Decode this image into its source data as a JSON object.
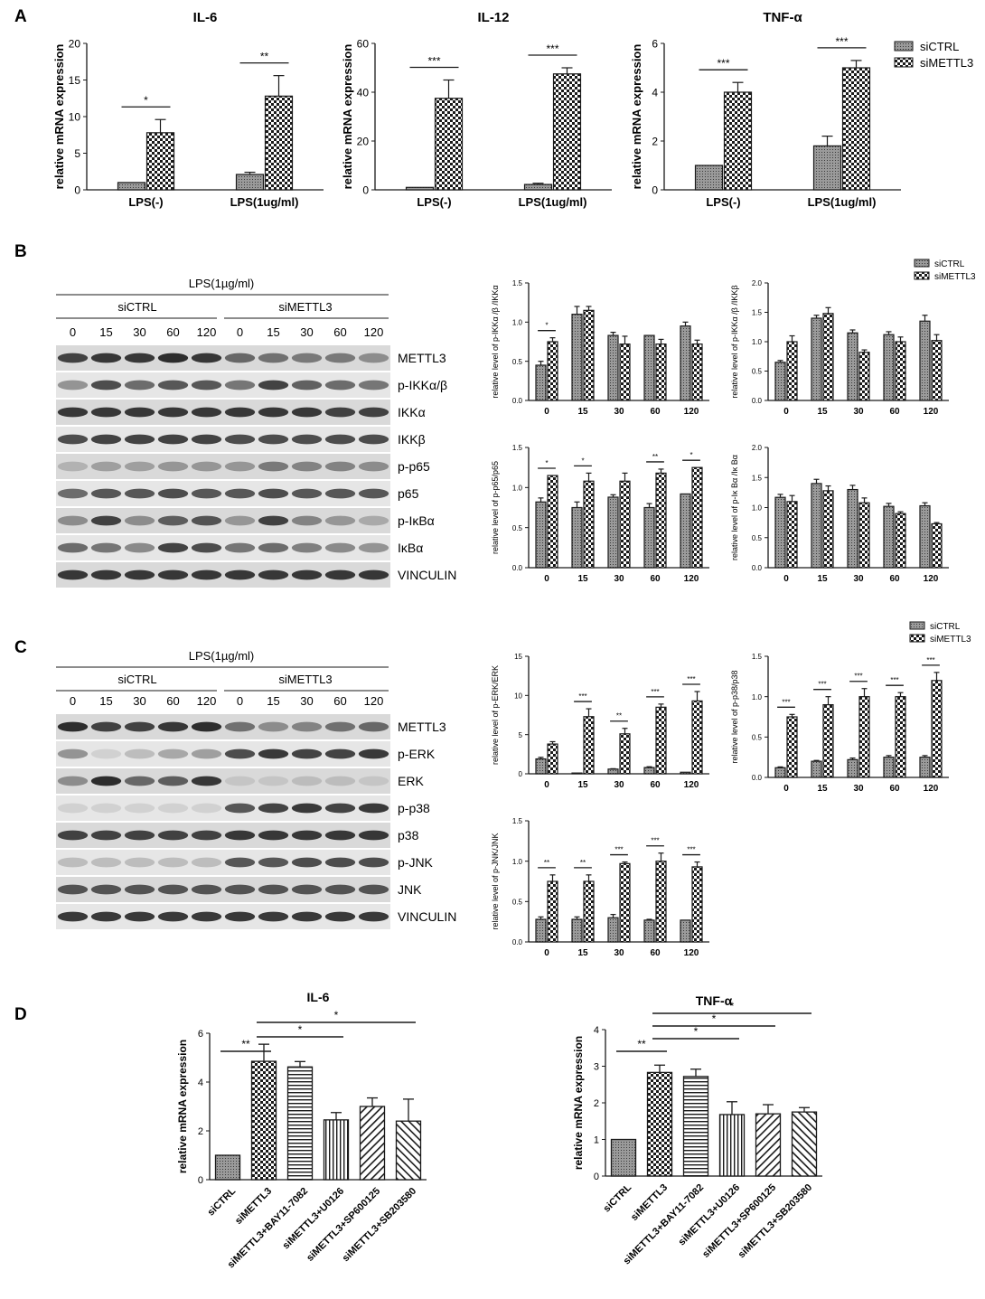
{
  "figure": {
    "panel_labels": [
      "A",
      "B",
      "C",
      "D"
    ],
    "legend_siCTRL": "siCTRL",
    "legend_siMETTL3": "siMETTL3",
    "colors": {
      "ink": "#1a1a1a",
      "fill_siCTRL": "#8c8c8c",
      "check_dark": "#1a1a1a",
      "check_light": "#ffffff"
    }
  },
  "panel_b": {
    "treatment": "LPS(1µg/ml)",
    "group1": "siCTRL",
    "group2": "siMETTL3",
    "timepoints": [
      "0",
      "15",
      "30",
      "60",
      "120",
      "0",
      "15",
      "30",
      "60",
      "120"
    ],
    "bands": [
      "METTL3",
      "p-IKKα/β",
      "IKKα",
      "IKKβ",
      "p-p65",
      "p65",
      "p-IκBα",
      "IκBα",
      "VINCULIN"
    ]
  },
  "panel_c": {
    "treatment": "LPS(1µg/ml)",
    "group1": "siCTRL",
    "group2": "siMETTL3",
    "timepoints": [
      "0",
      "15",
      "30",
      "60",
      "120",
      "0",
      "15",
      "30",
      "60",
      "120"
    ],
    "bands": [
      "METTL3",
      "p-ERK",
      "ERK",
      "p-p38",
      "p38",
      "p-JNK",
      "JNK",
      "VINCULIN"
    ]
  },
  "chart_data": [
    {
      "id": "A1",
      "type": "bar",
      "title": "IL-6",
      "ylabel": "relative mRNA expression",
      "categories": [
        "LPS(-)",
        "LPS(1ug/ml)"
      ],
      "ylim": [
        0,
        20
      ],
      "yticks": [
        0,
        5,
        10,
        15,
        20
      ],
      "series": [
        {
          "name": "siCTRL",
          "values": [
            1.0,
            2.1
          ],
          "errors": [
            0,
            0.3
          ]
        },
        {
          "name": "siMETTL3",
          "values": [
            7.8,
            12.8
          ],
          "errors": [
            1.8,
            2.8
          ]
        }
      ],
      "sig": [
        {
          "cat": 0,
          "label": "*"
        },
        {
          "cat": 1,
          "label": "**"
        }
      ]
    },
    {
      "id": "A2",
      "type": "bar",
      "title": "IL-12",
      "ylabel": "relative mRNA expression",
      "categories": [
        "LPS(-)",
        "LPS(1ug/ml)"
      ],
      "ylim": [
        0,
        60
      ],
      "yticks": [
        0,
        20,
        40,
        60
      ],
      "series": [
        {
          "name": "siCTRL",
          "values": [
            1.0,
            2.2
          ],
          "errors": [
            0,
            0.5
          ]
        },
        {
          "name": "siMETTL3",
          "values": [
            37.5,
            47.5
          ],
          "errors": [
            7.5,
            2.5
          ]
        }
      ],
      "sig": [
        {
          "cat": 0,
          "label": "***"
        },
        {
          "cat": 1,
          "label": "***"
        }
      ]
    },
    {
      "id": "A3",
      "type": "bar",
      "title": "TNF-α",
      "ylabel": "relative mRNA expression",
      "categories": [
        "LPS(-)",
        "LPS(1ug/ml)"
      ],
      "ylim": [
        0,
        6
      ],
      "yticks": [
        0,
        2,
        4,
        6
      ],
      "series": [
        {
          "name": "siCTRL",
          "values": [
            1.0,
            1.8
          ],
          "errors": [
            0,
            0.4
          ]
        },
        {
          "name": "siMETTL3",
          "values": [
            4.0,
            5.0
          ],
          "errors": [
            0.4,
            0.3
          ]
        }
      ],
      "sig": [
        {
          "cat": 0,
          "label": "***"
        },
        {
          "cat": 1,
          "label": "***"
        }
      ]
    },
    {
      "id": "B1",
      "type": "bar",
      "title": "",
      "ylabel": "relative level of p-IKKα /β /IKKα",
      "categories": [
        "0",
        "15",
        "30",
        "60",
        "120"
      ],
      "ylim": [
        0,
        1.5
      ],
      "yticks": [
        0.0,
        0.5,
        1.0,
        1.5
      ],
      "series": [
        {
          "name": "siCTRL",
          "values": [
            0.45,
            1.1,
            0.83,
            0.83,
            0.95
          ],
          "errors": [
            0.05,
            0.1,
            0.04,
            0,
            0.05
          ]
        },
        {
          "name": "siMETTL3",
          "values": [
            0.75,
            1.15,
            0.72,
            0.72,
            0.72
          ],
          "errors": [
            0.05,
            0.05,
            0.1,
            0.06,
            0.05
          ]
        }
      ],
      "sig": [
        {
          "cat": 0,
          "label": "*"
        }
      ]
    },
    {
      "id": "B2",
      "type": "bar",
      "title": "",
      "ylabel": "relative level of p-IKKα /β /IKKβ",
      "categories": [
        "0",
        "15",
        "30",
        "60",
        "120"
      ],
      "ylim": [
        0,
        2.0
      ],
      "yticks": [
        0.0,
        0.5,
        1.0,
        1.5,
        2.0
      ],
      "series": [
        {
          "name": "siCTRL",
          "values": [
            0.65,
            1.4,
            1.15,
            1.12,
            1.35
          ],
          "errors": [
            0.03,
            0.05,
            0.05,
            0.05,
            0.1
          ]
        },
        {
          "name": "siMETTL3",
          "values": [
            1.0,
            1.48,
            0.82,
            1.0,
            1.02
          ],
          "errors": [
            0.1,
            0.1,
            0.04,
            0.08,
            0.1
          ]
        }
      ],
      "sig": []
    },
    {
      "id": "B3",
      "type": "bar",
      "title": "",
      "ylabel": "relative level of p-p65/p65",
      "categories": [
        "0",
        "15",
        "30",
        "60",
        "120"
      ],
      "ylim": [
        0,
        1.5
      ],
      "yticks": [
        0.0,
        0.5,
        1.0,
        1.5
      ],
      "series": [
        {
          "name": "siCTRL",
          "values": [
            0.82,
            0.75,
            0.88,
            0.75,
            0.92
          ],
          "errors": [
            0.05,
            0.07,
            0.03,
            0.05,
            0
          ]
        },
        {
          "name": "siMETTL3",
          "values": [
            1.15,
            1.08,
            1.08,
            1.18,
            1.25
          ],
          "errors": [
            0,
            0.1,
            0.1,
            0.05,
            0
          ]
        }
      ],
      "sig": [
        {
          "cat": 0,
          "label": "*"
        },
        {
          "cat": 1,
          "label": "*"
        },
        {
          "cat": 3,
          "label": "**"
        },
        {
          "cat": 4,
          "label": "*"
        }
      ]
    },
    {
      "id": "B4",
      "type": "bar",
      "title": "",
      "ylabel": "relative level of p-Iκ Bα /Iκ Bα",
      "categories": [
        "0",
        "15",
        "30",
        "60",
        "120"
      ],
      "ylim": [
        0,
        2.0
      ],
      "yticks": [
        0.0,
        0.5,
        1.0,
        1.5,
        2.0
      ],
      "series": [
        {
          "name": "siCTRL",
          "values": [
            1.17,
            1.4,
            1.3,
            1.02,
            1.03
          ],
          "errors": [
            0.05,
            0.07,
            0.07,
            0.05,
            0.05
          ]
        },
        {
          "name": "siMETTL3",
          "values": [
            1.1,
            1.28,
            1.08,
            0.9,
            0.73
          ],
          "errors": [
            0.1,
            0.08,
            0.08,
            0.03,
            0.02
          ]
        }
      ],
      "sig": []
    },
    {
      "id": "C1",
      "type": "bar",
      "title": "",
      "ylabel": "relative level of p-ERK/ERK",
      "categories": [
        "0",
        "15",
        "30",
        "60",
        "120"
      ],
      "ylim": [
        0,
        15
      ],
      "yticks": [
        0,
        5,
        10,
        15
      ],
      "series": [
        {
          "name": "siCTRL",
          "values": [
            1.9,
            0.1,
            0.6,
            0.8,
            0.2
          ],
          "errors": [
            0.2,
            0,
            0.05,
            0.1,
            0
          ]
        },
        {
          "name": "siMETTL3",
          "values": [
            3.8,
            7.3,
            5.1,
            8.5,
            9.3
          ],
          "errors": [
            0.3,
            1.0,
            0.7,
            0.4,
            1.2
          ]
        }
      ],
      "sig": [
        {
          "cat": 1,
          "label": "***"
        },
        {
          "cat": 2,
          "label": "**"
        },
        {
          "cat": 3,
          "label": "***"
        },
        {
          "cat": 4,
          "label": "***"
        }
      ]
    },
    {
      "id": "C2",
      "type": "bar",
      "title": "",
      "ylabel": "relative level of p-p38/p38",
      "categories": [
        "0",
        "15",
        "30",
        "60",
        "120"
      ],
      "ylim": [
        0,
        1.5
      ],
      "yticks": [
        0.0,
        0.5,
        1.0,
        1.5
      ],
      "series": [
        {
          "name": "siCTRL",
          "values": [
            0.12,
            0.2,
            0.22,
            0.25,
            0.25
          ],
          "errors": [
            0.01,
            0.01,
            0.02,
            0.02,
            0.02
          ]
        },
        {
          "name": "siMETTL3",
          "values": [
            0.75,
            0.9,
            1.0,
            1.0,
            1.2
          ],
          "errors": [
            0.03,
            0.1,
            0.1,
            0.05,
            0.1
          ]
        }
      ],
      "sig": [
        {
          "cat": 0,
          "label": "***"
        },
        {
          "cat": 1,
          "label": "***"
        },
        {
          "cat": 2,
          "label": "***"
        },
        {
          "cat": 3,
          "label": "***"
        },
        {
          "cat": 4,
          "label": "***"
        }
      ]
    },
    {
      "id": "C3",
      "type": "bar",
      "title": "",
      "ylabel": "relative level of p-JNK/JNK",
      "categories": [
        "0",
        "15",
        "30",
        "60",
        "120"
      ],
      "ylim": [
        0,
        1.5
      ],
      "yticks": [
        0.0,
        0.5,
        1.0,
        1.5
      ],
      "series": [
        {
          "name": "siCTRL",
          "values": [
            0.28,
            0.28,
            0.3,
            0.27,
            0.27
          ],
          "errors": [
            0.03,
            0.03,
            0.04,
            0.01,
            0
          ]
        },
        {
          "name": "siMETTL3",
          "values": [
            0.75,
            0.75,
            0.97,
            1.0,
            0.93
          ],
          "errors": [
            0.08,
            0.08,
            0.02,
            0.1,
            0.06
          ]
        }
      ],
      "sig": [
        {
          "cat": 0,
          "label": "**"
        },
        {
          "cat": 1,
          "label": "**"
        },
        {
          "cat": 2,
          "label": "***"
        },
        {
          "cat": 3,
          "label": "***"
        },
        {
          "cat": 4,
          "label": "***"
        }
      ]
    },
    {
      "id": "D1",
      "type": "bar",
      "title": "IL-6",
      "ylabel": "relative mRNA expression",
      "categories": [
        "siCTRL",
        "siMETTL3",
        "siMETTL3+BAY11-7082",
        "siMETTL3+U0126",
        "siMETTL3+SP600125",
        "siMETTL3+SB203580"
      ],
      "ylim": [
        0,
        6
      ],
      "yticks": [
        0,
        2,
        4,
        6
      ],
      "values": [
        1.0,
        4.85,
        4.62,
        2.45,
        3.0,
        2.4
      ],
      "errors": [
        0,
        0.7,
        0.22,
        0.3,
        0.35,
        0.9
      ],
      "sig": [
        {
          "from": 0,
          "to": 1,
          "label": "**"
        },
        {
          "from": 1,
          "to": 3,
          "label": "*"
        },
        {
          "from": 1,
          "to": 5,
          "label": "*"
        }
      ]
    },
    {
      "id": "D2",
      "type": "bar",
      "title": "TNF-α",
      "ylabel": "relative mRNA expression",
      "categories": [
        "siCTRL",
        "siMETTL3",
        "siMETTL3+BAY11-7082",
        "siMETTL3+U0126",
        "siMETTL3+SP600125",
        "siMETTL3+SB203580"
      ],
      "ylim": [
        0,
        4
      ],
      "yticks": [
        0,
        1,
        2,
        3,
        4
      ],
      "values": [
        1.0,
        2.83,
        2.72,
        1.68,
        1.7,
        1.75
      ],
      "errors": [
        0,
        0.2,
        0.2,
        0.35,
        0.25,
        0.12
      ],
      "sig": [
        {
          "from": 0,
          "to": 1,
          "label": "**"
        },
        {
          "from": 1,
          "to": 3,
          "label": "*"
        },
        {
          "from": 1,
          "to": 4,
          "label": "*"
        },
        {
          "from": 1,
          "to": 5,
          "label": "*"
        }
      ]
    }
  ]
}
